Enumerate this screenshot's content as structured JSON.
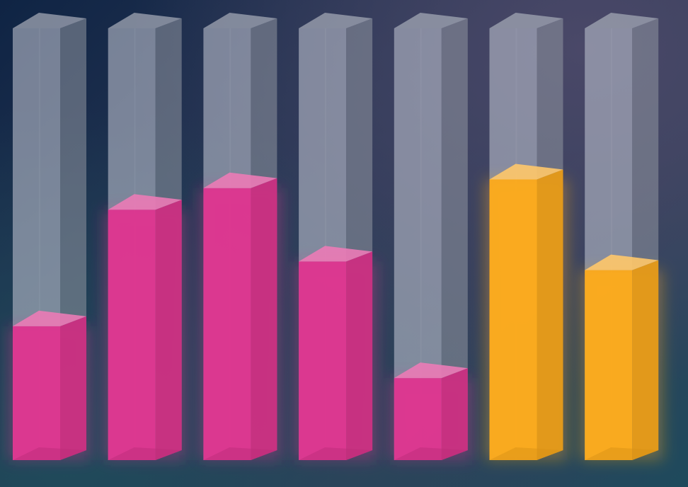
{
  "chart_data": {
    "type": "bar",
    "style": "3d-progress-columns",
    "title": "",
    "xlabel": "",
    "ylabel": "",
    "ylim": [
      0,
      100
    ],
    "grid": false,
    "legend": "none",
    "categories": [
      "",
      "",
      "",
      "",
      "",
      "",
      ""
    ],
    "values": [
      31,
      58,
      63,
      46,
      19,
      65,
      44
    ],
    "bar_colors": [
      "#e0348f",
      "#e0348f",
      "#e0348f",
      "#e0348f",
      "#e0348f",
      "#ffab19",
      "#ffab19"
    ]
  },
  "colors": {
    "track": "#b4bac8",
    "pink": "#e0348f",
    "orange": "#ffab19"
  }
}
